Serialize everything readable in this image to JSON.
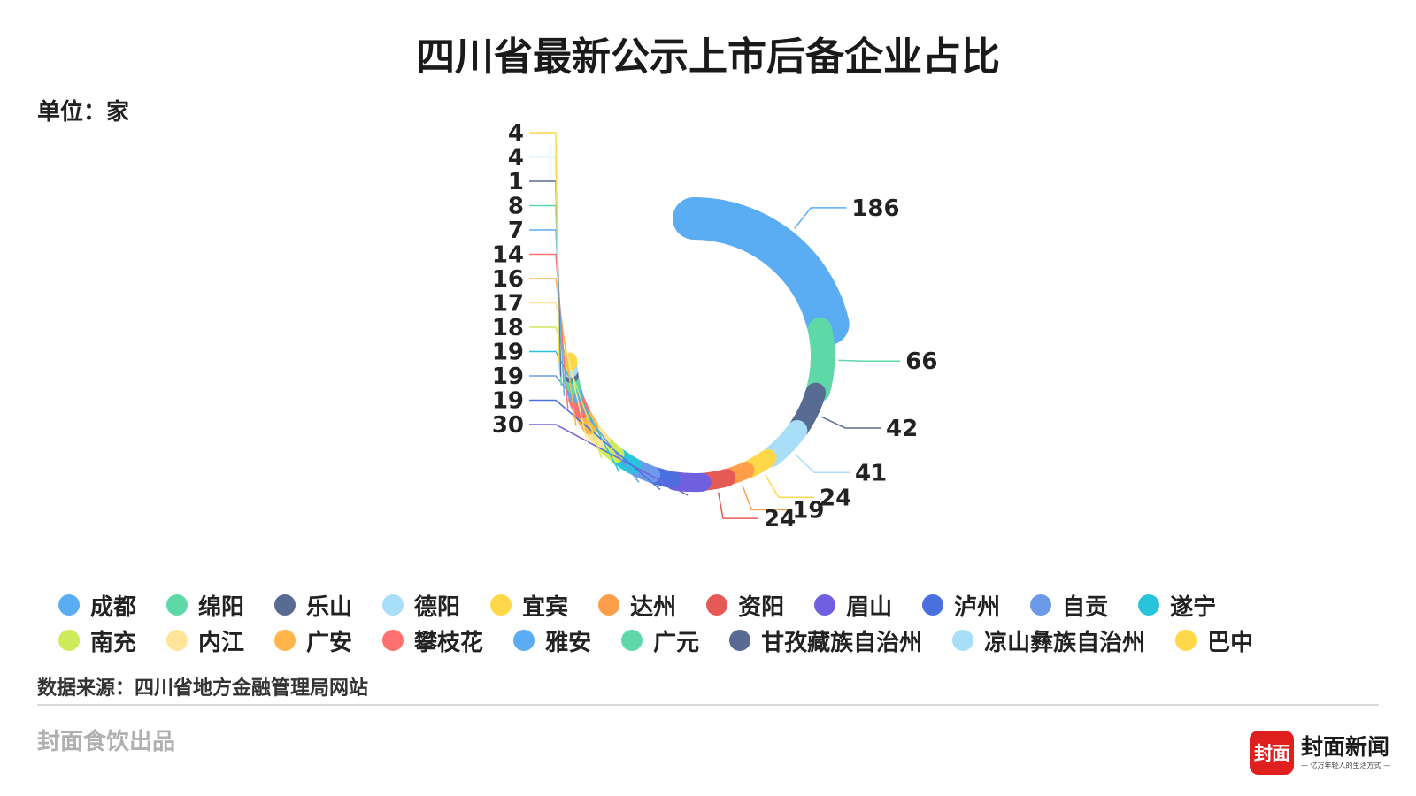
{
  "title": "四川省最新公示上市后备企业占比",
  "unit_label": "单位：家",
  "source_label": "数据来源：四川省地方金融管理局网站",
  "producer_label": "封面食饮出品",
  "brand": {
    "badge": "封面",
    "name": "封面新闻",
    "slogan": "— 亿万年轻人的生活方式 —"
  },
  "chart_data": {
    "type": "pie",
    "variant": "rose-donut",
    "title": "四川省最新公示上市后备企业占比",
    "unit": "单位：家",
    "categories": [
      "成都",
      "绵阳",
      "乐山",
      "德阳",
      "宜宾",
      "达州",
      "资阳",
      "眉山",
      "泸州",
      "自贡",
      "遂宁",
      "南充",
      "内江",
      "广安",
      "攀枝花",
      "雅安",
      "广元",
      "甘孜藏族自治州",
      "凉山彝族自治州",
      "巴中"
    ],
    "values": [
      186,
      66,
      42,
      41,
      24,
      19,
      24,
      30,
      19,
      19,
      19,
      18,
      17,
      16,
      14,
      7,
      8,
      1,
      4,
      4
    ],
    "colors": [
      "#5AADF3",
      "#5FD8A8",
      "#586B93",
      "#A8DEF8",
      "#FFD84A",
      "#FF9E4A",
      "#E55A55",
      "#7060E0",
      "#4A70E0",
      "#6C9AE8",
      "#28C4DC",
      "#CDEB5A",
      "#FFE59A",
      "#FFB54A",
      "#FF7070",
      "#5AADF3",
      "#5FD8A8",
      "#586B93",
      "#A8DEF8",
      "#FFD84A"
    ],
    "legend_position": "bottom"
  }
}
